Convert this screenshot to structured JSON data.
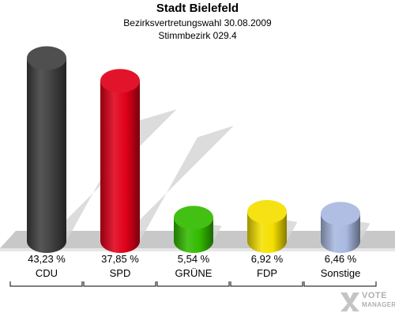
{
  "header": {
    "title": "Stadt Bielefeld",
    "subtitle": "Bezirksvertretungswahl 30.08.2009",
    "district": "Stimmbezirk 029.4"
  },
  "colors": {
    "background": "#ffffff",
    "floor": "#c8c8c8",
    "shadow": "#d6d6d6"
  },
  "chart_data": {
    "type": "bar",
    "categories": [
      "CDU",
      "SPD",
      "GRÜNE",
      "FDP",
      "Sonstige"
    ],
    "values": [
      43.23,
      37.85,
      5.54,
      6.92,
      6.46
    ],
    "value_labels": [
      "43,23 %",
      "37,85 %",
      "5,54 %",
      "6,92 %",
      "6,46 %"
    ],
    "colors": [
      "#404040",
      "#e0001a",
      "#33bb00",
      "#f5e000",
      "#a8b8e0"
    ],
    "ylim": [
      0,
      45
    ],
    "grid": false
  },
  "watermark": {
    "line1": "VOTE",
    "line2": "MANAGER"
  }
}
